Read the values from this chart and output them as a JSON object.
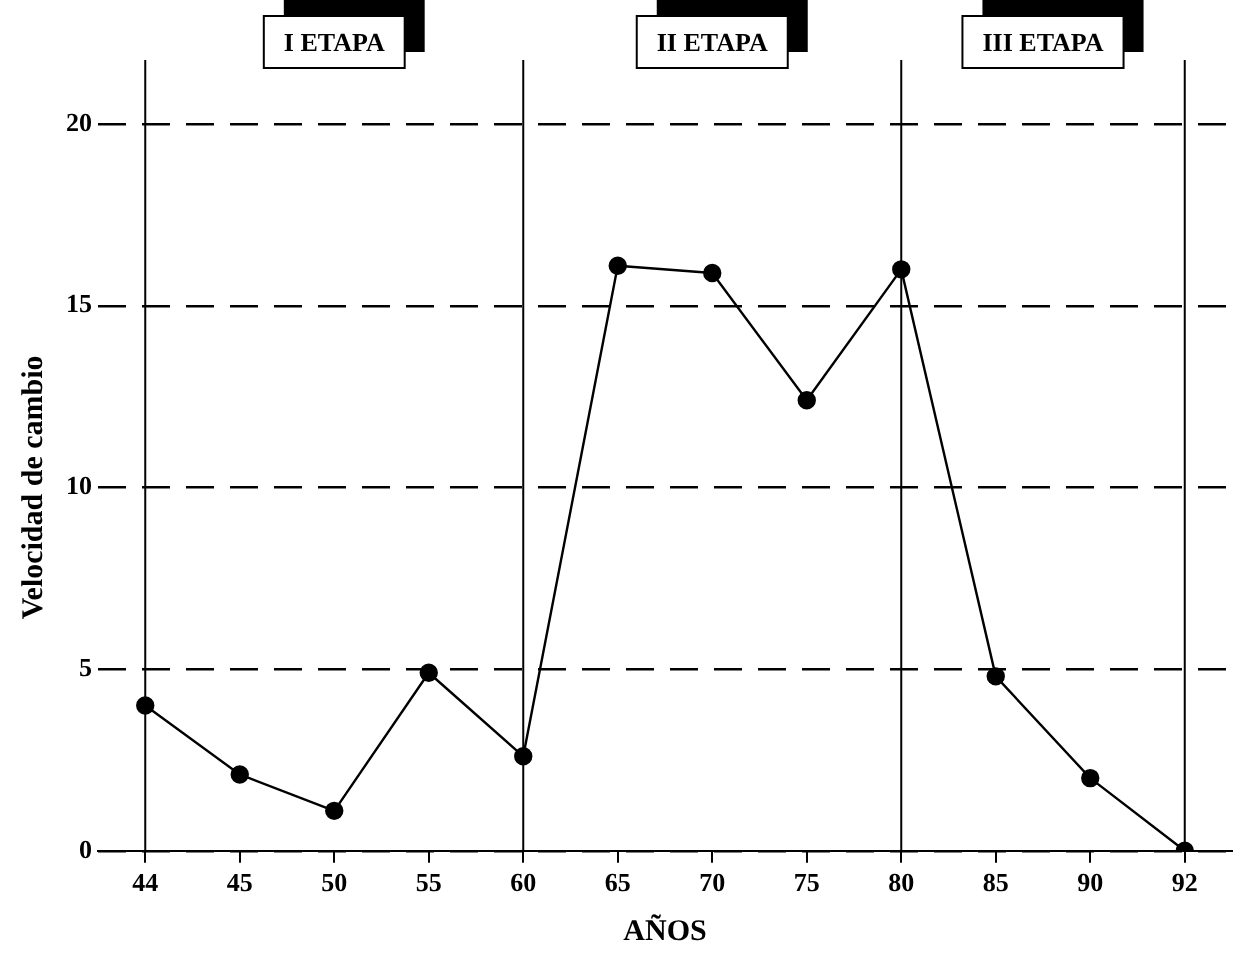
{
  "chart_data": {
    "type": "line",
    "xlabel": "AÑOS",
    "ylabel": "Velocidad de cambio",
    "categories": [
      "44",
      "45",
      "50",
      "55",
      "60",
      "65",
      "70",
      "75",
      "80",
      "85",
      "90",
      "92"
    ],
    "series": [
      {
        "color": "#000000",
        "values": [
          4.0,
          2.1,
          1.1,
          4.9,
          2.6,
          16.1,
          15.9,
          12.4,
          16.0,
          4.8,
          2.0,
          0
        ]
      }
    ],
    "ylim": [
      0,
      20
    ],
    "yticks": [
      0,
      5,
      10,
      15,
      20
    ],
    "grid": "y",
    "legend": false,
    "marker": "circle",
    "line_style": "solid",
    "ref_lines": [
      {
        "axis": "x",
        "value": "44"
      },
      {
        "axis": "x",
        "value": "60"
      },
      {
        "axis": "x",
        "value": "80"
      },
      {
        "axis": "x",
        "value": "92"
      }
    ],
    "annotations": [
      "I ETAPA",
      "II ETAPA",
      "III ETAPA"
    ]
  }
}
